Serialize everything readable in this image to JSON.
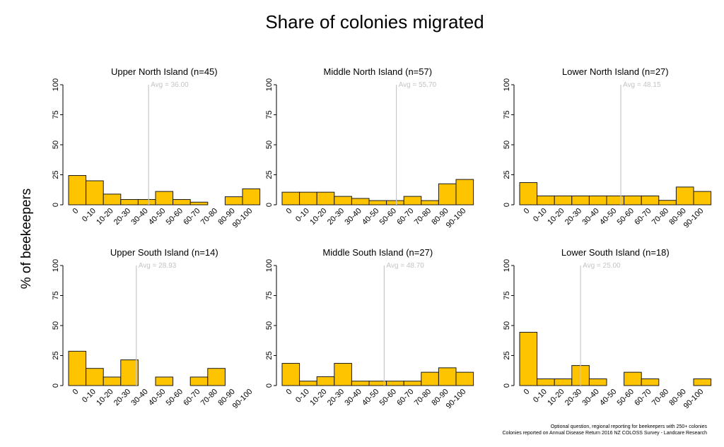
{
  "title": "Share of colonies migrated",
  "ylabel": "% of beekeepers",
  "footnotes": [
    "Optional question, regional reporting for beekeepers with 250+ colonies",
    "Colonies reported on Annual Disease Return 2016 NZ COLOSS Survey - Landcare Research"
  ],
  "colors": {
    "bar": "#ffc400",
    "bar_edge": "#1a1a1a",
    "avg_line": "#c8c8c8",
    "avg_text": "#c4c4c4"
  },
  "chart_data": [
    {
      "type": "bar",
      "title": "Upper North Island (n=45)",
      "categories": [
        "0",
        "0-10",
        "10-20",
        "20-30",
        "30-40",
        "40-50",
        "50-60",
        "60-70",
        "70-80",
        "80-90",
        "90-100"
      ],
      "values": [
        24.4,
        20.0,
        8.9,
        4.4,
        4.4,
        11.1,
        4.4,
        2.2,
        0,
        6.7,
        13.3
      ],
      "avg_label": "Avg = 36.00",
      "avg": 36.0,
      "yticks": [
        "0",
        "25",
        "50",
        "75",
        "100"
      ],
      "ylim": [
        0,
        100
      ]
    },
    {
      "type": "bar",
      "title": "Middle North Island (n=57)",
      "categories": [
        "0",
        "0-10",
        "10-20",
        "20-30",
        "30-40",
        "40-50",
        "50-60",
        "60-70",
        "70-80",
        "80-90",
        "90-100"
      ],
      "values": [
        10.5,
        10.5,
        10.5,
        7.0,
        5.3,
        3.5,
        3.5,
        7.0,
        3.5,
        17.5,
        21.1
      ],
      "avg_label": "Avg = 55.70",
      "avg": 55.7,
      "yticks": [
        "0",
        "25",
        "50",
        "75",
        "100"
      ],
      "ylim": [
        0,
        100
      ]
    },
    {
      "type": "bar",
      "title": "Lower North Island (n=27)",
      "categories": [
        "0",
        "0-10",
        "10-20",
        "20-30",
        "30-40",
        "40-50",
        "50-60",
        "60-70",
        "70-80",
        "80-90",
        "90-100"
      ],
      "values": [
        18.5,
        7.4,
        7.4,
        7.4,
        7.4,
        7.4,
        7.4,
        7.4,
        3.7,
        14.8,
        11.1
      ],
      "avg_label": "Avg = 48.15",
      "avg": 48.15,
      "yticks": [
        "0",
        "25",
        "50",
        "75",
        "100"
      ],
      "ylim": [
        0,
        100
      ]
    },
    {
      "type": "bar",
      "title": "Upper South Island (n=14)",
      "categories": [
        "0",
        "0-10",
        "10-20",
        "20-30",
        "30-40",
        "40-50",
        "50-60",
        "60-70",
        "70-80",
        "80-90",
        "90-100"
      ],
      "values": [
        28.6,
        14.3,
        7.1,
        21.4,
        0,
        7.1,
        0,
        7.1,
        14.3,
        0,
        0
      ],
      "avg_label": "Avg = 28.93",
      "avg": 28.93,
      "yticks": [
        "0",
        "25",
        "50",
        "75",
        "100"
      ],
      "ylim": [
        0,
        100
      ]
    },
    {
      "type": "bar",
      "title": "Middle South Island (n=27)",
      "categories": [
        "0",
        "0-10",
        "10-20",
        "20-30",
        "30-40",
        "40-50",
        "50-60",
        "60-70",
        "70-80",
        "80-90",
        "90-100"
      ],
      "values": [
        18.5,
        3.7,
        7.4,
        18.5,
        3.7,
        3.7,
        3.7,
        3.7,
        11.1,
        14.8,
        11.1
      ],
      "avg_label": "Avg = 48.70",
      "avg": 48.7,
      "yticks": [
        "0",
        "25",
        "50",
        "75",
        "100"
      ],
      "ylim": [
        0,
        100
      ]
    },
    {
      "type": "bar",
      "title": "Lower South Island (n=18)",
      "categories": [
        "0",
        "0-10",
        "10-20",
        "20-30",
        "30-40",
        "40-50",
        "50-60",
        "60-70",
        "70-80",
        "80-90",
        "90-100"
      ],
      "values": [
        44.4,
        5.6,
        5.6,
        16.7,
        5.6,
        0,
        11.1,
        5.6,
        0,
        0,
        5.6
      ],
      "avg_label": "Avg = 25.00",
      "avg": 25.0,
      "yticks": [
        "0",
        "25",
        "50",
        "75",
        "100"
      ],
      "ylim": [
        0,
        100
      ]
    }
  ]
}
